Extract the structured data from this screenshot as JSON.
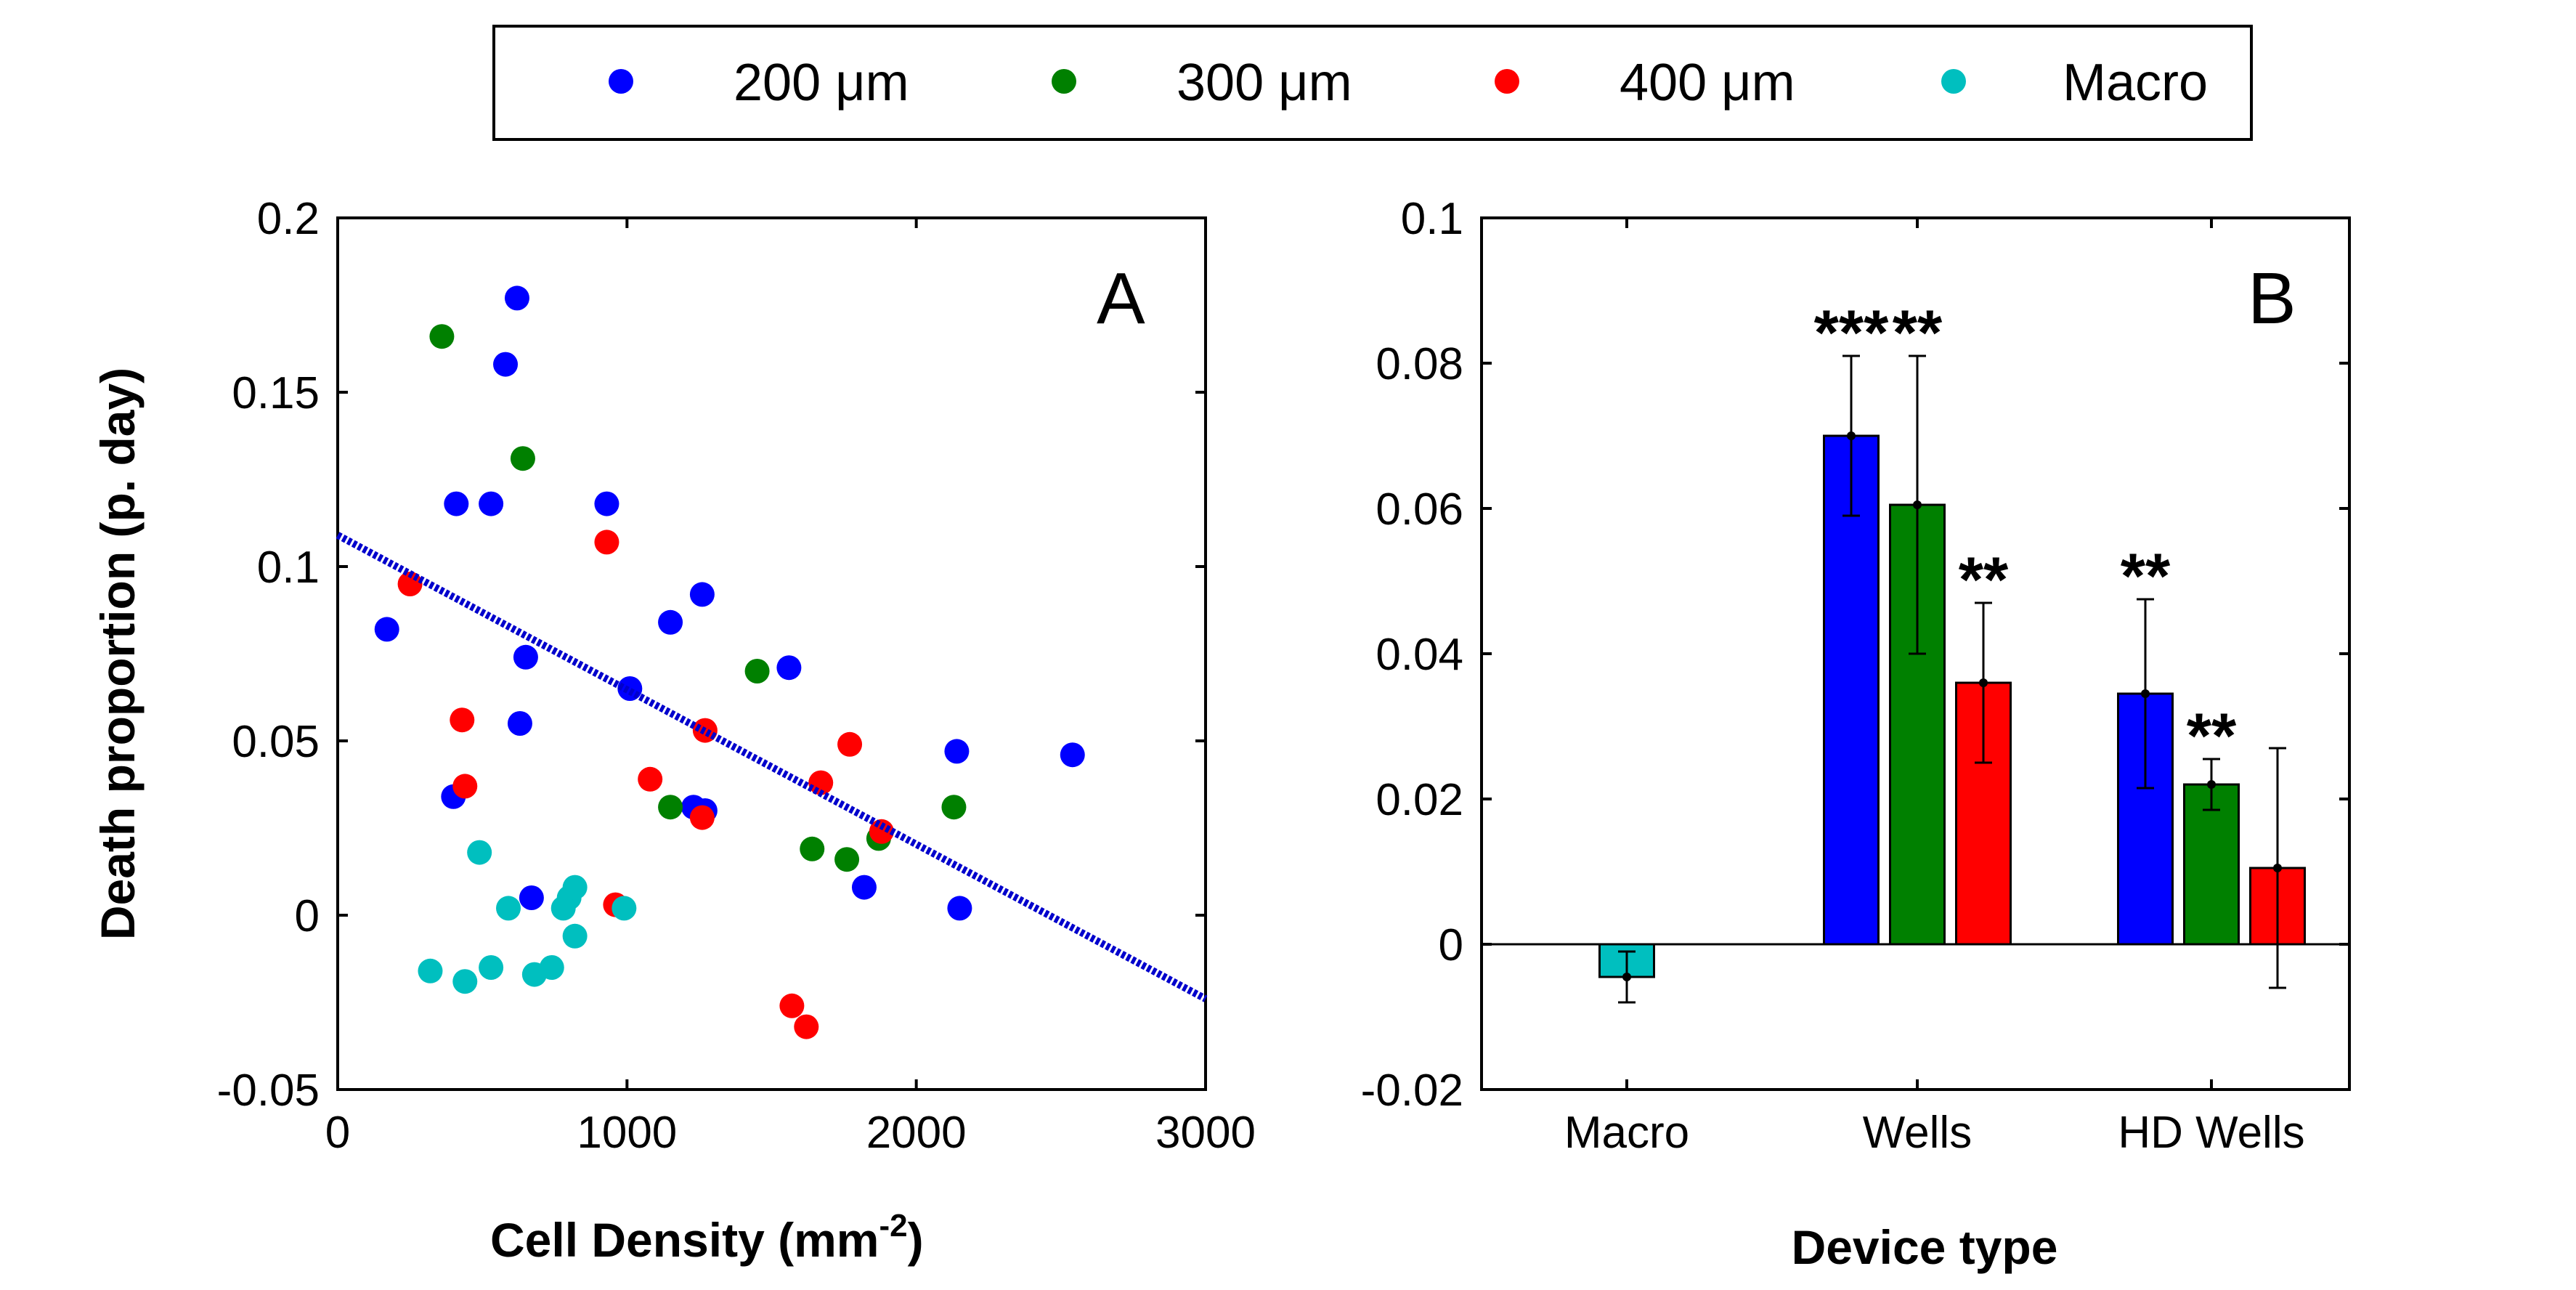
{
  "legend": {
    "entries": [
      {
        "label": "200 μm",
        "color": "#0000ff"
      },
      {
        "label": "300 μm",
        "color": "#008000"
      },
      {
        "label": "400 μm",
        "color": "#ff0000"
      },
      {
        "label": "Macro",
        "color": "#00bfbf"
      }
    ]
  },
  "chart_data": [
    {
      "type": "scatter",
      "panel": "A",
      "title": "",
      "xlabel": "Cell Density (mm",
      "xlabel_sup": "-2",
      "xlabel_end": ")",
      "ylabel": "Death proportion (p. day)",
      "xlim": [
        0,
        3000
      ],
      "ylim": [
        -0.05,
        0.2
      ],
      "xticks": [
        "0",
        "1000",
        "2000",
        "3000"
      ],
      "yticks": [
        "-0.05",
        "0",
        "0.05",
        "0.1",
        "0.15",
        "0.2"
      ],
      "xtick_values": [
        0,
        1000,
        2000,
        3000
      ],
      "ytick_values": [
        -0.05,
        0,
        0.05,
        0.1,
        0.15,
        0.2
      ],
      "series": [
        {
          "name": "200 μm",
          "color": "#0000ff",
          "points": [
            [
              170,
              0.082
            ],
            [
              400,
              0.034
            ],
            [
              410,
              0.118
            ],
            [
              530,
              0.118
            ],
            [
              580,
              0.158
            ],
            [
              620,
              0.177
            ],
            [
              630,
              0.055
            ],
            [
              650,
              0.074
            ],
            [
              670,
              0.005
            ],
            [
              930,
              0.118
            ],
            [
              1010,
              0.065
            ],
            [
              1150,
              0.084
            ],
            [
              1230,
              0.031
            ],
            [
              1260,
              0.092
            ],
            [
              1270,
              0.03
            ],
            [
              1560,
              0.071
            ],
            [
              1820,
              0.008
            ],
            [
              2140,
              0.047
            ],
            [
              2150,
              0.002
            ],
            [
              2540,
              0.046
            ]
          ]
        },
        {
          "name": "300 μm",
          "color": "#008000",
          "points": [
            [
              360,
              0.166
            ],
            [
              640,
              0.131
            ],
            [
              1150,
              0.031
            ],
            [
              1450,
              0.07
            ],
            [
              1640,
              0.019
            ],
            [
              1760,
              0.016
            ],
            [
              1870,
              0.022
            ],
            [
              2130,
              0.031
            ]
          ]
        },
        {
          "name": "400 μm",
          "color": "#ff0000",
          "points": [
            [
              250,
              0.095
            ],
            [
              430,
              0.056
            ],
            [
              440,
              0.037
            ],
            [
              930,
              0.107
            ],
            [
              960,
              0.003
            ],
            [
              1080,
              0.039
            ],
            [
              1260,
              0.028
            ],
            [
              1270,
              0.053
            ],
            [
              1570,
              -0.026
            ],
            [
              1620,
              -0.032
            ],
            [
              1670,
              0.038
            ],
            [
              1770,
              0.049
            ],
            [
              1880,
              0.024
            ]
          ]
        },
        {
          "name": "Macro",
          "color": "#00bfbf",
          "points": [
            [
              320,
              -0.016
            ],
            [
              440,
              -0.019
            ],
            [
              490,
              0.018
            ],
            [
              530,
              -0.015
            ],
            [
              590,
              0.002
            ],
            [
              680,
              -0.017
            ],
            [
              740,
              -0.015
            ],
            [
              780,
              0.002
            ],
            [
              800,
              0.005
            ],
            [
              820,
              -0.006
            ],
            [
              820,
              0.008
            ],
            [
              990,
              0.002
            ]
          ]
        }
      ],
      "trendline": {
        "color": "#0000cc",
        "x": [
          0,
          3000
        ],
        "y": [
          0.109,
          -0.024
        ]
      },
      "panel_letter": "A"
    },
    {
      "type": "bar",
      "panel": "B",
      "title": "",
      "xlabel": "Device type",
      "ylabel": "",
      "ylim": [
        -0.02,
        0.1
      ],
      "yticks": [
        "-0.02",
        "0",
        "0.02",
        "0.04",
        "0.06",
        "0.08",
        "0.1"
      ],
      "ytick_values": [
        -0.02,
        0,
        0.02,
        0.04,
        0.06,
        0.08,
        0.1
      ],
      "categories": [
        "Macro",
        "Wells",
        "HD Wells"
      ],
      "bars": [
        {
          "group": 0,
          "series": "Macro",
          "color": "#00bfbf",
          "value": -0.0045,
          "err": 0.0035,
          "stars": ""
        },
        {
          "group": 1,
          "series": "200 μm",
          "color": "#0000ff",
          "value": 0.07,
          "err": 0.011,
          "stars": "***"
        },
        {
          "group": 1,
          "series": "300 μm",
          "color": "#008000",
          "value": 0.0605,
          "err": 0.0205,
          "stars": "**"
        },
        {
          "group": 1,
          "series": "400 μm",
          "color": "#ff0000",
          "value": 0.036,
          "err": 0.011,
          "stars": "**"
        },
        {
          "group": 2,
          "series": "200 μm",
          "color": "#0000ff",
          "value": 0.0345,
          "err": 0.013,
          "stars": "**"
        },
        {
          "group": 2,
          "series": "300 μm",
          "color": "#008000",
          "value": 0.022,
          "err": 0.0035,
          "stars": "**"
        },
        {
          "group": 2,
          "series": "400 μm",
          "color": "#ff0000",
          "value": 0.0105,
          "err": 0.0165,
          "stars": ""
        }
      ],
      "panel_letter": "B"
    }
  ]
}
